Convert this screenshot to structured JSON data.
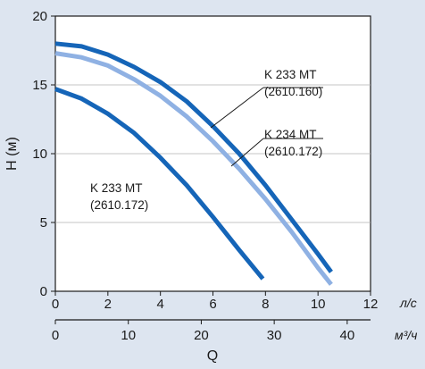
{
  "chart_data": {
    "type": "line",
    "ylabel": "H (м)",
    "xlabel": "Q",
    "x_unit_primary": "л/с",
    "x_unit_secondary": "м³/ч",
    "xlim": [
      0,
      12
    ],
    "ylim": [
      0,
      20
    ],
    "x_ticks": [
      "0",
      "2",
      "4",
      "6",
      "8",
      "10",
      "12"
    ],
    "y_ticks": [
      "0",
      "5",
      "10",
      "15",
      "20"
    ],
    "secondary_xlim": [
      0,
      43.2
    ],
    "secondary_x_ticks": [
      "0",
      "10",
      "20",
      "30",
      "40"
    ],
    "grid": "horizontal",
    "series": [
      {
        "model": "K 233 MT",
        "code": "(2610.160)",
        "color": "#1565b8",
        "x": [
          0,
          1,
          2,
          3,
          4,
          5,
          6,
          7,
          8,
          9,
          10,
          10.5
        ],
        "y": [
          18.0,
          17.8,
          17.2,
          16.3,
          15.2,
          13.8,
          12.0,
          10.0,
          7.7,
          5.2,
          2.7,
          1.4
        ]
      },
      {
        "model": "K 234 MT",
        "code": "(2610.172)",
        "color": "#8fb1e3",
        "x": [
          0,
          1,
          2,
          3,
          4,
          5,
          6,
          7,
          8,
          9,
          10,
          10.5
        ],
        "y": [
          17.3,
          17.0,
          16.4,
          15.4,
          14.2,
          12.7,
          10.9,
          8.9,
          6.7,
          4.3,
          1.7,
          0.5
        ]
      },
      {
        "model": "K 233 MT",
        "code": "(2610.172)",
        "color": "#1565b8",
        "x": [
          0,
          1,
          2,
          3,
          4,
          5,
          6,
          7,
          7.9
        ],
        "y": [
          14.7,
          14.0,
          12.9,
          11.5,
          9.7,
          7.7,
          5.4,
          3.0,
          0.9
        ]
      }
    ]
  }
}
